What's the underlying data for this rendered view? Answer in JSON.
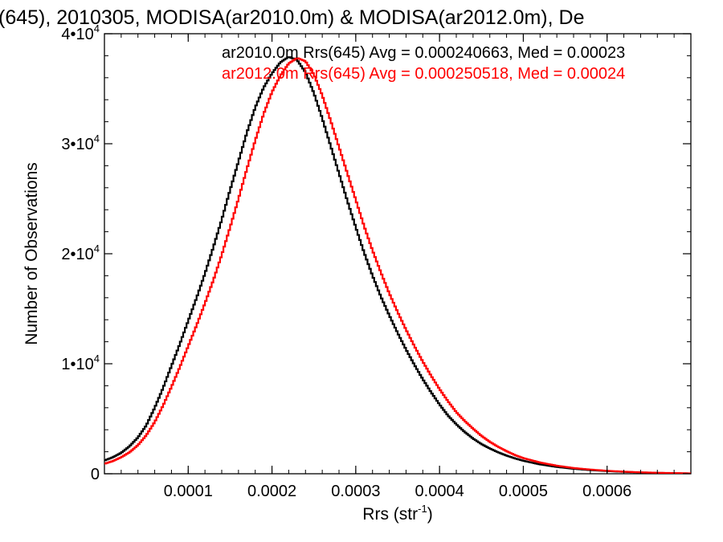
{
  "chart_data": {
    "type": "line",
    "title": "(645), 2010305, MODISA(ar2010.0m) & MODISA(ar2012.0m), De",
    "xlabel": "Rrs (str",
    "xlabel_sup": "-1",
    "xlabel_close": ")",
    "ylabel": "Number of Observations",
    "xlim": [
      0.0,
      0.0007
    ],
    "ylim": [
      0,
      40000
    ],
    "x_ticks": [
      {
        "value": 0.0001,
        "label": "0.0001"
      },
      {
        "value": 0.0002,
        "label": "0.0002"
      },
      {
        "value": 0.0003,
        "label": "0.0003"
      },
      {
        "value": 0.0004,
        "label": "0.0004"
      },
      {
        "value": 0.0005,
        "label": "0.0005"
      },
      {
        "value": 0.0006,
        "label": "0.0006"
      }
    ],
    "y_ticks": [
      {
        "value": 0,
        "mantissa": "0",
        "exp": ""
      },
      {
        "value": 10000,
        "mantissa": "1•10",
        "exp": "4"
      },
      {
        "value": 20000,
        "mantissa": "2•10",
        "exp": "4"
      },
      {
        "value": 30000,
        "mantissa": "3•10",
        "exp": "4"
      },
      {
        "value": 40000,
        "mantissa": "4•10",
        "exp": "4"
      }
    ],
    "grid": false,
    "legend_placement": "top",
    "series": [
      {
        "label": "ar2010.0m Rrs(645) Avg = 0.000240663, Med = 0.00023",
        "color": "#000000",
        "points": [
          [
            0.0,
            1200
          ],
          [
            1e-05,
            1500
          ],
          [
            2e-05,
            1900
          ],
          [
            3e-05,
            2500
          ],
          [
            4e-05,
            3300
          ],
          [
            5e-05,
            4400
          ],
          [
            6e-05,
            6000
          ],
          [
            7e-05,
            7800
          ],
          [
            8e-05,
            9800
          ],
          [
            9e-05,
            11800
          ],
          [
            0.0001,
            13900
          ],
          [
            0.00011,
            16000
          ],
          [
            0.00012,
            18200
          ],
          [
            0.00013,
            20600
          ],
          [
            0.00014,
            23100
          ],
          [
            0.00015,
            25800
          ],
          [
            0.00016,
            28400
          ],
          [
            0.00017,
            31000
          ],
          [
            0.00018,
            33300
          ],
          [
            0.00019,
            35100
          ],
          [
            0.0002,
            36400
          ],
          [
            0.00021,
            37400
          ],
          [
            0.00022,
            37900
          ],
          [
            0.00023,
            37600
          ],
          [
            0.00024,
            36500
          ],
          [
            0.00025,
            34600
          ],
          [
            0.00026,
            32300
          ],
          [
            0.00027,
            29800
          ],
          [
            0.00028,
            27300
          ],
          [
            0.00029,
            24800
          ],
          [
            0.0003,
            22400
          ],
          [
            0.00031,
            20100
          ],
          [
            0.00032,
            18000
          ],
          [
            0.00033,
            16100
          ],
          [
            0.00034,
            14400
          ],
          [
            0.00035,
            12800
          ],
          [
            0.00036,
            11300
          ],
          [
            0.00037,
            9900
          ],
          [
            0.00038,
            8600
          ],
          [
            0.00039,
            7400
          ],
          [
            0.0004,
            6300
          ],
          [
            0.00041,
            5300
          ],
          [
            0.00042,
            4500
          ],
          [
            0.00043,
            3800
          ],
          [
            0.00044,
            3200
          ],
          [
            0.00045,
            2700
          ],
          [
            0.00046,
            2300
          ],
          [
            0.00047,
            1950
          ],
          [
            0.00048,
            1650
          ],
          [
            0.00049,
            1400
          ],
          [
            0.0005,
            1180
          ],
          [
            0.00052,
            850
          ],
          [
            0.00054,
            620
          ],
          [
            0.00056,
            450
          ],
          [
            0.00058,
            330
          ],
          [
            0.0006,
            240
          ],
          [
            0.00062,
            170
          ],
          [
            0.00064,
            120
          ],
          [
            0.00066,
            80
          ],
          [
            0.00068,
            50
          ],
          [
            0.0007,
            30
          ]
        ]
      },
      {
        "label": "ar2012.0m Rrs(645) Avg = 0.000250518, Med = 0.00024",
        "color": "#ff0000",
        "points": [
          [
            0.0,
            900
          ],
          [
            1e-05,
            1150
          ],
          [
            2e-05,
            1500
          ],
          [
            3e-05,
            1950
          ],
          [
            4e-05,
            2600
          ],
          [
            5e-05,
            3500
          ],
          [
            6e-05,
            4700
          ],
          [
            7e-05,
            6200
          ],
          [
            8e-05,
            7900
          ],
          [
            9e-05,
            9700
          ],
          [
            0.0001,
            11600
          ],
          [
            0.00011,
            13500
          ],
          [
            0.00012,
            15500
          ],
          [
            0.00013,
            17600
          ],
          [
            0.00014,
            19900
          ],
          [
            0.00015,
            22400
          ],
          [
            0.00016,
            25000
          ],
          [
            0.00017,
            27700
          ],
          [
            0.00018,
            30300
          ],
          [
            0.00019,
            32700
          ],
          [
            0.0002,
            34700
          ],
          [
            0.00021,
            36200
          ],
          [
            0.00022,
            37300
          ],
          [
            0.00023,
            37800
          ],
          [
            0.00024,
            37500
          ],
          [
            0.00025,
            36300
          ],
          [
            0.00026,
            34400
          ],
          [
            0.00027,
            32100
          ],
          [
            0.00028,
            29700
          ],
          [
            0.00029,
            27300
          ],
          [
            0.0003,
            24900
          ],
          [
            0.00031,
            22500
          ],
          [
            0.00032,
            20300
          ],
          [
            0.00033,
            18300
          ],
          [
            0.00034,
            16400
          ],
          [
            0.00035,
            14700
          ],
          [
            0.00036,
            13100
          ],
          [
            0.00037,
            11600
          ],
          [
            0.00038,
            10200
          ],
          [
            0.00039,
            8900
          ],
          [
            0.0004,
            7700
          ],
          [
            0.00041,
            6600
          ],
          [
            0.00042,
            5600
          ],
          [
            0.00043,
            4800
          ],
          [
            0.00044,
            4100
          ],
          [
            0.00045,
            3450
          ],
          [
            0.00046,
            2900
          ],
          [
            0.00047,
            2450
          ],
          [
            0.00048,
            2050
          ],
          [
            0.00049,
            1700
          ],
          [
            0.0005,
            1420
          ],
          [
            0.00052,
            1020
          ],
          [
            0.00054,
            730
          ],
          [
            0.00056,
            520
          ],
          [
            0.00058,
            380
          ],
          [
            0.0006,
            270
          ],
          [
            0.00062,
            190
          ],
          [
            0.00064,
            130
          ],
          [
            0.00066,
            90
          ],
          [
            0.00068,
            60
          ],
          [
            0.0007,
            35
          ]
        ]
      }
    ]
  }
}
